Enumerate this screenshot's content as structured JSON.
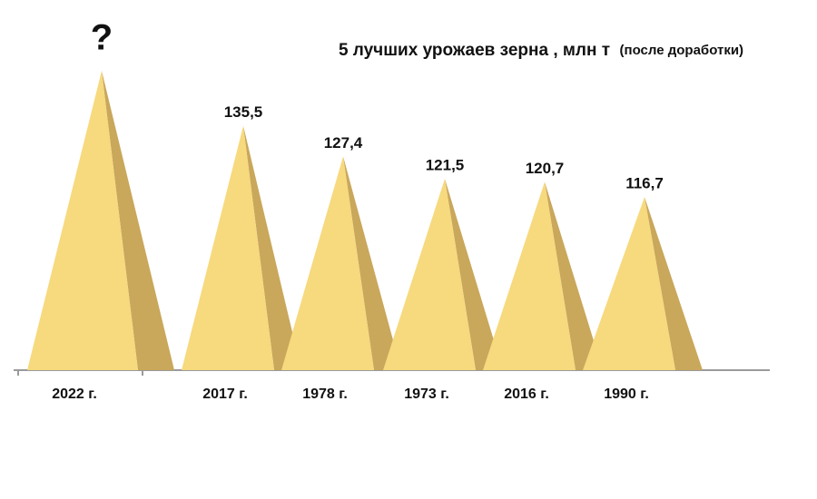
{
  "chart_data": {
    "type": "pyramid",
    "title": "5 лучших урожаев зерна , млн т",
    "subtitle": "(после доработки)",
    "categories": [
      "2022 г.",
      "2017 г.",
      "1978 г.",
      "1973 г.",
      "2016 г.",
      "1990 г."
    ],
    "values": [
      150,
      135.5,
      127.4,
      121.5,
      120.7,
      116.7
    ],
    "value_labels": [
      "?",
      "135,5",
      "127,4",
      "121,5",
      "120,7",
      "116,7"
    ],
    "color": "#f7d97e",
    "shade_color": "#c9a75b",
    "ylim": [
      71,
      150
    ]
  }
}
